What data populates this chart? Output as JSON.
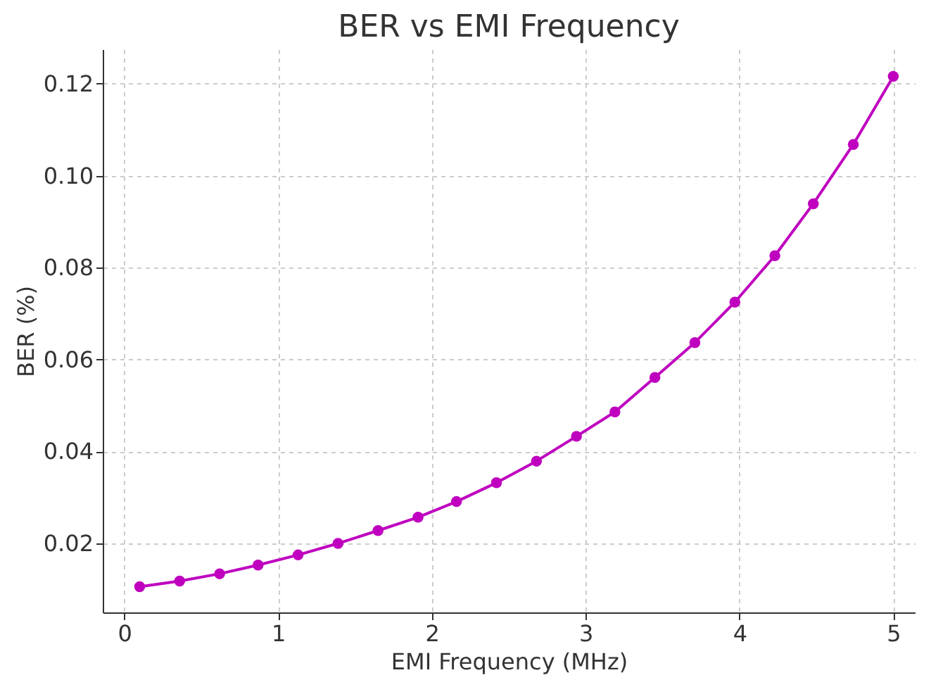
{
  "chart_data": {
    "type": "line",
    "title": "BER vs EMI Frequency",
    "xlabel": "EMI Frequency (MHz)",
    "ylabel": "BER (%)",
    "x": [
      0.1,
      0.36,
      0.62,
      0.87,
      1.13,
      1.39,
      1.65,
      1.91,
      2.16,
      2.42,
      2.68,
      2.94,
      3.19,
      3.45,
      3.71,
      3.97,
      4.23,
      4.48,
      4.74,
      5.0
    ],
    "series": [
      {
        "color": "#bf00bf",
        "values": [
          0.0106,
          0.0118,
          0.0134,
          0.0153,
          0.0175,
          0.02,
          0.0228,
          0.0257,
          0.0291,
          0.0332,
          0.0379,
          0.0433,
          0.0486,
          0.0561,
          0.0637,
          0.0725,
          0.0826,
          0.0939,
          0.1068,
          0.1216
        ]
      }
    ],
    "xlim": [
      -0.14,
      5.14
    ],
    "ylim": [
      0.005,
      0.1275
    ],
    "xticks": [
      0,
      1,
      2,
      3,
      4,
      5
    ],
    "yticks": [
      0.02,
      0.04,
      0.06,
      0.08,
      {
        "value": 0.1,
        "label": "0.10"
      },
      0.12
    ],
    "grid": true,
    "marker": "circle",
    "line_style": "solid"
  }
}
